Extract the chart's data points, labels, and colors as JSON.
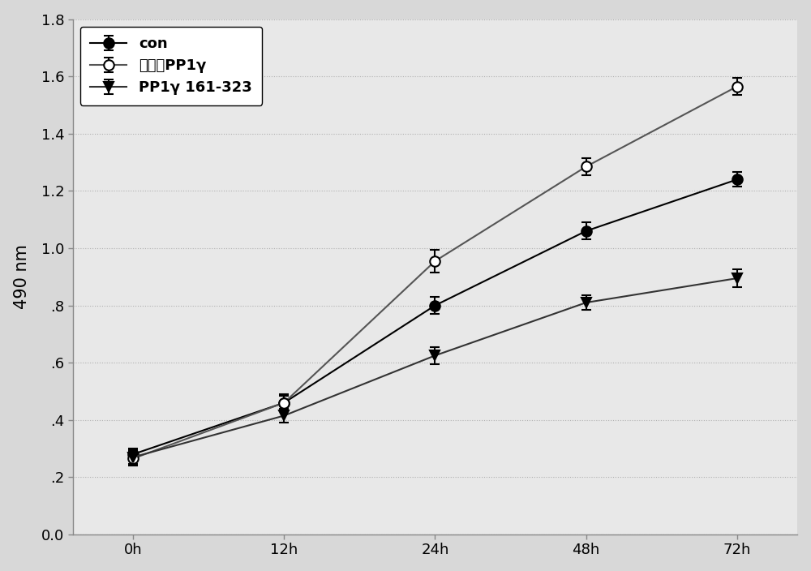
{
  "x_positions": [
    0,
    1,
    2,
    3,
    4
  ],
  "x_labels": [
    "0h",
    "12h",
    "24h",
    "48h",
    "72h"
  ],
  "series": [
    {
      "label": "con",
      "y": [
        0.28,
        0.46,
        0.8,
        1.06,
        1.24
      ],
      "yerr": [
        0.02,
        0.03,
        0.03,
        0.03,
        0.025
      ],
      "color": "#000000",
      "marker": "o",
      "markersize": 9,
      "markerfacecolor": "#000000",
      "linewidth": 1.5
    },
    {
      "label": "野生型PP1γ",
      "y": [
        0.265,
        0.46,
        0.955,
        1.285,
        1.565
      ],
      "yerr": [
        0.025,
        0.025,
        0.04,
        0.03,
        0.03
      ],
      "color": "#555555",
      "marker": "o",
      "markersize": 9,
      "markerfacecolor": "#ffffff",
      "linewidth": 1.5
    },
    {
      "label": "PP1γ 161-323",
      "y": [
        0.27,
        0.415,
        0.625,
        0.81,
        0.895
      ],
      "yerr": [
        0.025,
        0.025,
        0.03,
        0.025,
        0.03
      ],
      "color": "#333333",
      "marker": "v",
      "markersize": 9,
      "markerfacecolor": "#000000",
      "linewidth": 1.5
    }
  ],
  "ylabel": "490 nm",
  "ylim": [
    0.0,
    1.8
  ],
  "yticks": [
    0.0,
    0.2,
    0.4,
    0.6,
    0.8,
    1.0,
    1.2,
    1.4,
    1.6,
    1.8
  ],
  "ytick_labels": [
    "0.0",
    ".2",
    ".4",
    ".6",
    ".8",
    "1.0",
    "1.2",
    "1.4",
    "1.6",
    "1.8"
  ],
  "fig_bg_color": "#d8d8d8",
  "plot_bg_color": "#e8e8e8",
  "legend_fontsize": 13,
  "ylabel_fontsize": 15,
  "tick_fontsize": 13
}
